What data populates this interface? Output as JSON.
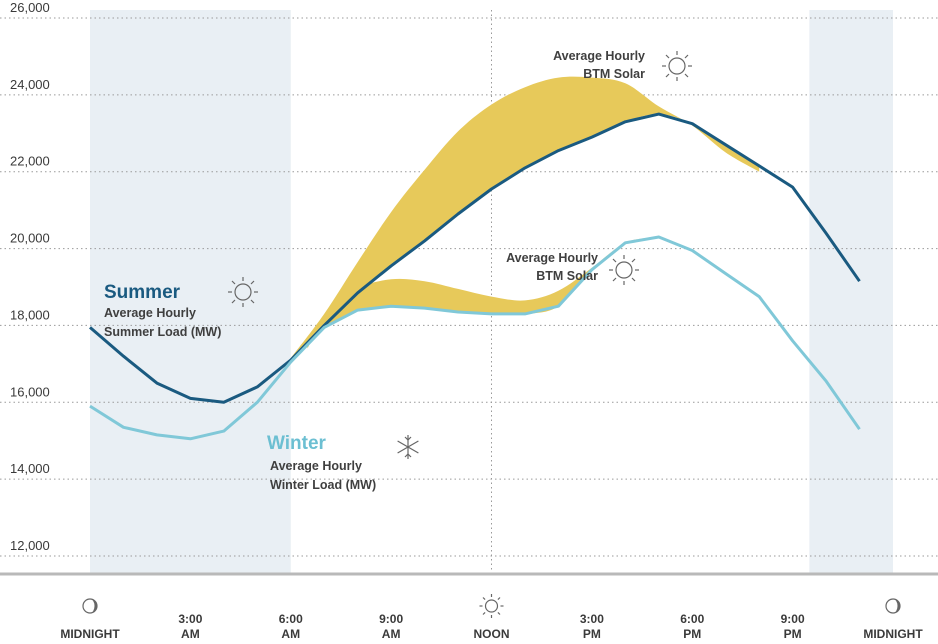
{
  "chart_data": {
    "type": "line",
    "ylim": [
      11500,
      26000
    ],
    "y_ticks": [
      "12,000",
      "14,000",
      "16,000",
      "18,000",
      "20,000",
      "22,000",
      "24,000",
      "26,000"
    ],
    "y_tick_values": [
      12000,
      14000,
      16000,
      18000,
      20000,
      22000,
      24000,
      26000
    ],
    "x_hours": [
      0,
      1,
      2,
      3,
      4,
      5,
      6,
      7,
      8,
      9,
      10,
      11,
      12,
      13,
      14,
      15,
      16,
      17,
      18,
      19,
      20,
      21,
      22,
      23,
      24
    ],
    "x_ticks": [
      {
        "hour": 0,
        "line1": "",
        "line2": "MIDNIGHT",
        "icon": "moon-icon"
      },
      {
        "hour": 3,
        "line1": "3:00",
        "line2": "AM"
      },
      {
        "hour": 6,
        "line1": "6:00",
        "line2": "AM"
      },
      {
        "hour": 9,
        "line1": "9:00",
        "line2": "AM"
      },
      {
        "hour": 12,
        "line1": "",
        "line2": "NOON",
        "icon": "sun-icon"
      },
      {
        "hour": 15,
        "line1": "3:00",
        "line2": "PM"
      },
      {
        "hour": 18,
        "line1": "6:00",
        "line2": "PM"
      },
      {
        "hour": 21,
        "line1": "9:00",
        "line2": "PM"
      },
      {
        "hour": 24,
        "line1": "",
        "line2": "MIDNIGHT",
        "icon": "moon-icon"
      }
    ],
    "night_shading_hours": [
      [
        0,
        6
      ],
      [
        21.5,
        24
      ]
    ],
    "grid": "dotted horizontal",
    "series": [
      {
        "name": "Average Hourly Summer Load (MW)",
        "color": "#1a5a80",
        "x": [
          0,
          1,
          2,
          3,
          4,
          5,
          6,
          7,
          8,
          9,
          10,
          11,
          12,
          13,
          14,
          15,
          16,
          17,
          18,
          19,
          20,
          21,
          22,
          23
        ],
        "values": [
          17950,
          17200,
          16500,
          16100,
          16000,
          16400,
          17100,
          18000,
          18850,
          19550,
          20200,
          20900,
          21550,
          22100,
          22550,
          22900,
          23300,
          23500,
          23250,
          22700,
          22150,
          21600,
          20400,
          19150
        ]
      },
      {
        "name": "Average Hourly Winter Load (MW)",
        "color": "#80c8d8",
        "x": [
          0,
          1,
          2,
          3,
          4,
          5,
          6,
          7,
          8,
          9,
          10,
          11,
          12,
          13,
          14,
          15,
          16,
          17,
          18,
          19,
          20,
          21,
          22,
          23
        ],
        "values": [
          15900,
          15350,
          15150,
          15050,
          15250,
          16000,
          17050,
          17950,
          18400,
          18500,
          18450,
          18350,
          18300,
          18300,
          18500,
          19450,
          20150,
          20300,
          19950,
          19350,
          18750,
          17600,
          16550,
          15300
        ]
      }
    ],
    "solar_bands": [
      {
        "name": "Average Hourly BTM Solar",
        "base_series": "summer",
        "color": "#e7c95a",
        "x": [
          6,
          7,
          8,
          9,
          10,
          11,
          12,
          13,
          14,
          15,
          16,
          17,
          18,
          19,
          20
        ],
        "top": [
          17150,
          18300,
          19650,
          20950,
          22050,
          23050,
          23750,
          24200,
          24450,
          24450,
          24300,
          23700,
          23200,
          22500,
          22000
        ]
      },
      {
        "name": "Average Hourly BTM Solar",
        "base_series": "winter",
        "color": "#e7c95a",
        "x": [
          6.5,
          7,
          8,
          9,
          10,
          11,
          12,
          13,
          14,
          15,
          16,
          17
        ],
        "top": [
          17400,
          18200,
          18950,
          19200,
          19150,
          18950,
          18750,
          18650,
          18900,
          19500,
          20150,
          20300
        ]
      }
    ]
  },
  "labels": {
    "summer_title": "Summer",
    "summer_line1": "Average Hourly",
    "summer_line2": "Summer Load (MW)",
    "winter_title": "Winter",
    "winter_line1": "Average Hourly",
    "winter_line2": "Winter Load (MW)",
    "solar_top_line1": "Average Hourly",
    "solar_top_line2": "BTM Solar",
    "solar_mid_line1": "Average Hourly",
    "solar_mid_line2": "BTM Solar"
  },
  "colors": {
    "summer": "#1a5a80",
    "winter": "#6cbfd2",
    "solar": "#e7c95a",
    "night_shade": "#e9eff4",
    "axis": "#b9b9b9"
  }
}
